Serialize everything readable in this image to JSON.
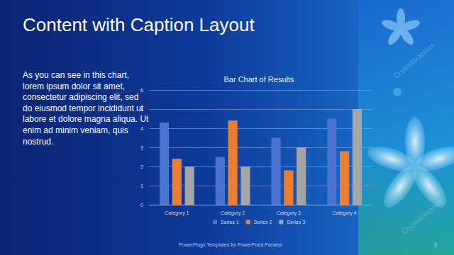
{
  "slide": {
    "title": "Content with Caption Layout",
    "caption": "As you can see in this chart, lorem ipsum dolor sit amet, consectetur adipiscing elit, sed do eiusmod tempor incididunt ut labore et dolore magna aliqua. Ut enim ad minim veniam, quis nostrud.",
    "footer": "PowerPlugs Templates for PowerPoint Preview",
    "page": 8,
    "watermark": "CrystalGraphics"
  },
  "chart_data": {
    "type": "bar",
    "title": "Bar Chart of Results",
    "categories": [
      "Category 1",
      "Category 2",
      "Category 3",
      "Category 4"
    ],
    "series": [
      {
        "name": "Series 1",
        "color": "#4a72d0",
        "values": [
          4.3,
          2.5,
          3.5,
          4.5
        ]
      },
      {
        "name": "Series 2",
        "color": "#ed7d31",
        "values": [
          2.4,
          4.4,
          1.8,
          2.8
        ]
      },
      {
        "name": "Series 3",
        "color": "#a5a5a5",
        "values": [
          2.0,
          2.0,
          3.0,
          5.0
        ]
      }
    ],
    "ylim": [
      0,
      6
    ],
    "yticks": [
      0,
      1,
      2,
      3,
      4,
      5,
      6
    ],
    "grid": true,
    "legend": "bottom"
  }
}
